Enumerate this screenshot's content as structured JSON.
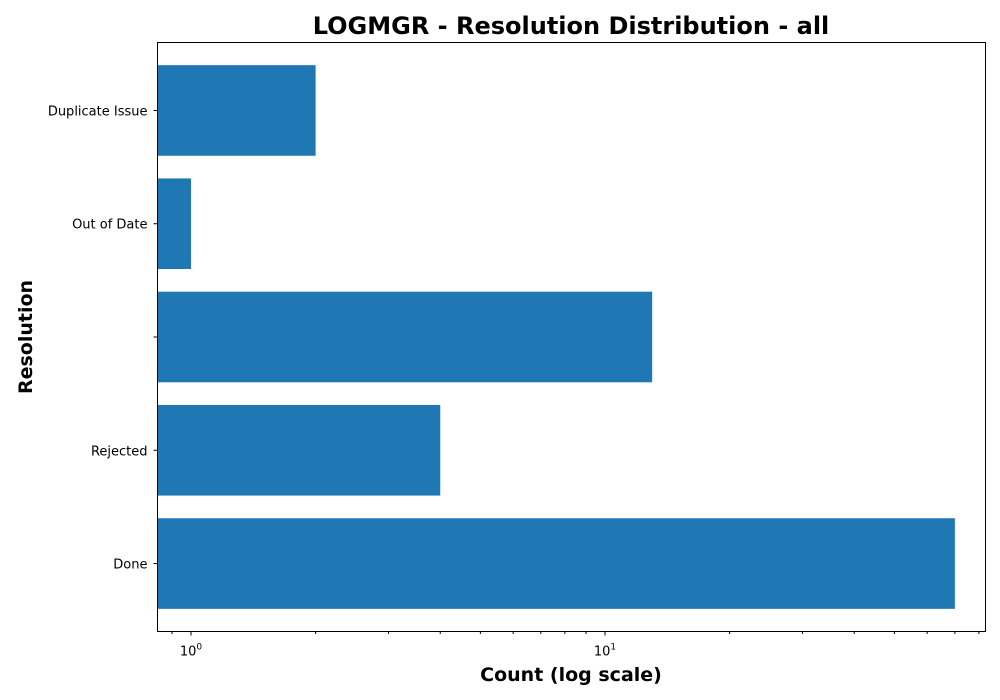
{
  "chart_data": {
    "type": "bar",
    "orientation": "horizontal",
    "title": "LOGMGR - Resolution Distribution - all",
    "xlabel": "Count (log scale)",
    "ylabel": "Resolution",
    "xscale": "log",
    "xlim": [
      0.83,
      83
    ],
    "grid": false,
    "categories": [
      "Done",
      "Rejected",
      "",
      "Out of Date",
      "Duplicate Issue"
    ],
    "values": [
      70,
      4,
      13,
      1,
      2
    ],
    "bar_color": "#1f77b4",
    "xticks": [
      {
        "base": "10",
        "exp": "0",
        "value": 1
      },
      {
        "base": "10",
        "exp": "1",
        "value": 10
      }
    ]
  }
}
